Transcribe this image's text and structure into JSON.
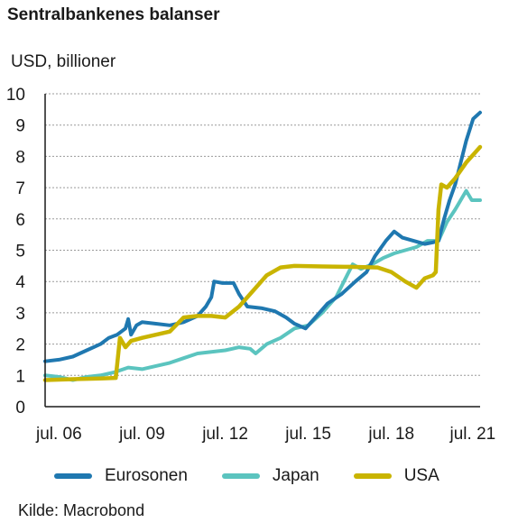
{
  "chart_data": {
    "type": "line",
    "title": "Sentralbankenes balanser",
    "ylabel": "USD, billioner",
    "xlabel": "",
    "source": "Kilde: Macrobond",
    "ylim": [
      0,
      10
    ],
    "yticks": [
      "0",
      "1",
      "2",
      "3",
      "4",
      "5",
      "6",
      "7",
      "8",
      "9",
      "10"
    ],
    "xticks": [
      {
        "label": "jul. 06",
        "year": 2006.5
      },
      {
        "label": "jul. 09",
        "year": 2009.5
      },
      {
        "label": "jul. 12",
        "year": 2012.5
      },
      {
        "label": "jul. 15",
        "year": 2015.5
      },
      {
        "label": "jul. 18",
        "year": 2018.5
      },
      {
        "label": "jul. 21",
        "year": 2021.5
      }
    ],
    "grid": true,
    "legend_position": "bottom",
    "series": [
      {
        "name": "Eurosonen",
        "color": "#1f78b0",
        "points": [
          [
            2006.0,
            1.45
          ],
          [
            2006.5,
            1.5
          ],
          [
            2007.0,
            1.6
          ],
          [
            2007.5,
            1.8
          ],
          [
            2008.0,
            2.0
          ],
          [
            2008.3,
            2.2
          ],
          [
            2008.6,
            2.3
          ],
          [
            2008.9,
            2.5
          ],
          [
            2009.0,
            2.8
          ],
          [
            2009.1,
            2.3
          ],
          [
            2009.3,
            2.6
          ],
          [
            2009.5,
            2.7
          ],
          [
            2010.0,
            2.65
          ],
          [
            2010.5,
            2.6
          ],
          [
            2011.0,
            2.7
          ],
          [
            2011.5,
            2.9
          ],
          [
            2011.8,
            3.2
          ],
          [
            2012.0,
            3.5
          ],
          [
            2012.1,
            4.0
          ],
          [
            2012.4,
            3.95
          ],
          [
            2012.8,
            3.95
          ],
          [
            2013.0,
            3.6
          ],
          [
            2013.3,
            3.2
          ],
          [
            2013.8,
            3.15
          ],
          [
            2014.3,
            3.05
          ],
          [
            2014.7,
            2.85
          ],
          [
            2015.0,
            2.65
          ],
          [
            2015.4,
            2.5
          ],
          [
            2015.8,
            2.9
          ],
          [
            2016.2,
            3.3
          ],
          [
            2016.7,
            3.6
          ],
          [
            2017.2,
            4.0
          ],
          [
            2017.6,
            4.3
          ],
          [
            2017.9,
            4.8
          ],
          [
            2018.3,
            5.3
          ],
          [
            2018.6,
            5.6
          ],
          [
            2018.9,
            5.4
          ],
          [
            2019.3,
            5.3
          ],
          [
            2019.7,
            5.2
          ],
          [
            2020.0,
            5.25
          ],
          [
            2020.2,
            5.3
          ],
          [
            2020.4,
            6.0
          ],
          [
            2020.6,
            6.6
          ],
          [
            2020.8,
            7.1
          ],
          [
            2021.0,
            7.8
          ],
          [
            2021.2,
            8.5
          ],
          [
            2021.45,
            9.2
          ],
          [
            2021.7,
            9.4
          ]
        ]
      },
      {
        "name": "Japan",
        "color": "#5bc4bf",
        "points": [
          [
            2006.0,
            1.0
          ],
          [
            2006.5,
            0.95
          ],
          [
            2007.0,
            0.85
          ],
          [
            2007.5,
            0.95
          ],
          [
            2008.0,
            1.0
          ],
          [
            2008.5,
            1.1
          ],
          [
            2009.0,
            1.25
          ],
          [
            2009.5,
            1.2
          ],
          [
            2010.0,
            1.3
          ],
          [
            2010.5,
            1.4
          ],
          [
            2011.0,
            1.55
          ],
          [
            2011.5,
            1.7
          ],
          [
            2012.0,
            1.75
          ],
          [
            2012.5,
            1.8
          ],
          [
            2013.0,
            1.9
          ],
          [
            2013.4,
            1.85
          ],
          [
            2013.6,
            1.7
          ],
          [
            2014.0,
            2.0
          ],
          [
            2014.5,
            2.2
          ],
          [
            2015.0,
            2.5
          ],
          [
            2015.5,
            2.6
          ],
          [
            2016.0,
            3.0
          ],
          [
            2016.5,
            3.5
          ],
          [
            2016.9,
            4.2
          ],
          [
            2017.1,
            4.55
          ],
          [
            2017.4,
            4.4
          ],
          [
            2017.8,
            4.55
          ],
          [
            2018.2,
            4.75
          ],
          [
            2018.6,
            4.9
          ],
          [
            2019.0,
            5.0
          ],
          [
            2019.4,
            5.1
          ],
          [
            2019.8,
            5.3
          ],
          [
            2020.2,
            5.3
          ],
          [
            2020.5,
            5.9
          ],
          [
            2020.8,
            6.3
          ],
          [
            2021.0,
            6.6
          ],
          [
            2021.2,
            6.9
          ],
          [
            2021.4,
            6.6
          ],
          [
            2021.7,
            6.6
          ]
        ]
      },
      {
        "name": "USA",
        "color": "#c9b400",
        "points": [
          [
            2006.0,
            0.85
          ],
          [
            2007.0,
            0.88
          ],
          [
            2008.0,
            0.9
          ],
          [
            2008.55,
            0.92
          ],
          [
            2008.7,
            2.2
          ],
          [
            2008.9,
            1.9
          ],
          [
            2009.1,
            2.1
          ],
          [
            2009.5,
            2.2
          ],
          [
            2010.0,
            2.3
          ],
          [
            2010.5,
            2.4
          ],
          [
            2011.0,
            2.85
          ],
          [
            2011.5,
            2.9
          ],
          [
            2012.0,
            2.9
          ],
          [
            2012.5,
            2.85
          ],
          [
            2013.0,
            3.2
          ],
          [
            2013.5,
            3.7
          ],
          [
            2014.0,
            4.2
          ],
          [
            2014.5,
            4.45
          ],
          [
            2015.0,
            4.5
          ],
          [
            2016.0,
            4.48
          ],
          [
            2017.0,
            4.47
          ],
          [
            2018.0,
            4.45
          ],
          [
            2018.5,
            4.3
          ],
          [
            2019.0,
            4.0
          ],
          [
            2019.4,
            3.8
          ],
          [
            2019.7,
            4.1
          ],
          [
            2020.0,
            4.2
          ],
          [
            2020.1,
            4.3
          ],
          [
            2020.2,
            6.3
          ],
          [
            2020.3,
            7.1
          ],
          [
            2020.5,
            7.0
          ],
          [
            2020.8,
            7.3
          ],
          [
            2021.2,
            7.8
          ],
          [
            2021.5,
            8.1
          ],
          [
            2021.7,
            8.3
          ]
        ]
      }
    ]
  }
}
